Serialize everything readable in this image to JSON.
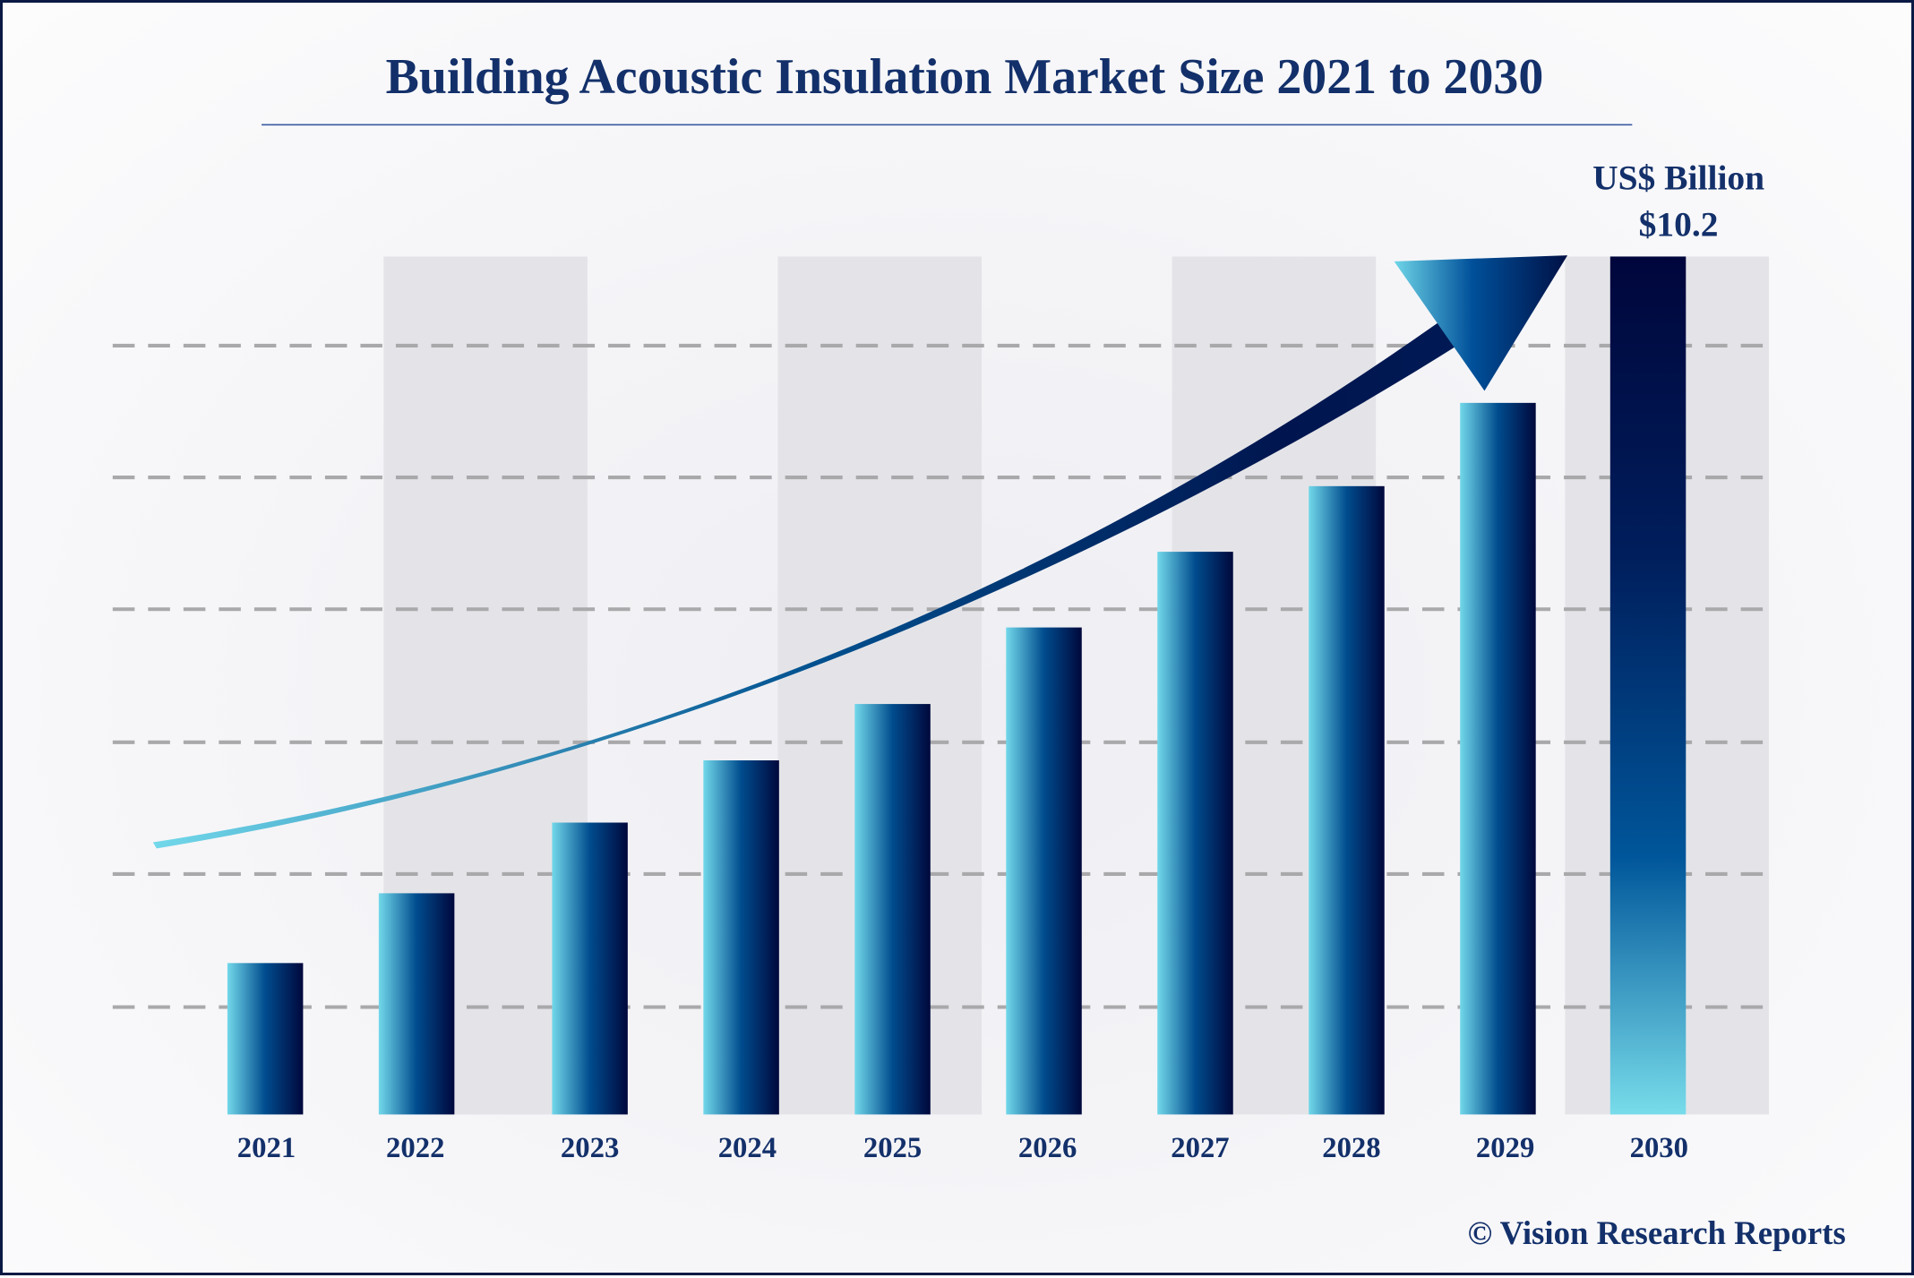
{
  "chart_data": {
    "type": "bar",
    "title": "Building Acoustic Insulation Market Size 2021 to 2030",
    "unit_label": "US$ Billion",
    "highlight_label": "$10.2",
    "categories": [
      "2021",
      "2022",
      "2023",
      "2024",
      "2025",
      "2026",
      "2027",
      "2028",
      "2029",
      "2030"
    ],
    "values": [
      1.8,
      2.63,
      3.47,
      4.21,
      4.88,
      5.79,
      6.69,
      7.47,
      8.46,
      10.2
    ],
    "ylim": [
      0,
      10.2
    ],
    "grid": "dashed horizontal",
    "legend": "none",
    "source": "© Vision Research Reports",
    "colors": {
      "text": "#13306a",
      "bar_light": "#6fd6e8",
      "bar_mid": "#004a8c",
      "bar_dark": "#00083c",
      "stripe": "#e4e4e8",
      "grid": "#a9a9ab"
    }
  }
}
